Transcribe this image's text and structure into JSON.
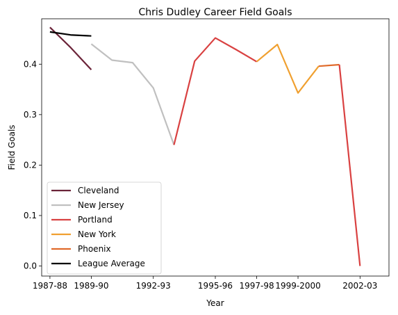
{
  "chart_data": {
    "type": "line",
    "title": "Chris Dudley Career Field Goals",
    "xlabel": "Year",
    "ylabel": "Field Goals",
    "x_ticks": [
      "1987-88",
      "1989-90",
      "1992-93",
      "1995-96",
      "1997-98",
      "1999-2000",
      "2002-03"
    ],
    "y_ticks": [
      "0.0",
      "0.1",
      "0.2",
      "0.3",
      "0.4"
    ],
    "xlim": [
      1986.6,
      2003.4
    ],
    "ylim": [
      -0.02,
      0.49
    ],
    "grid": false,
    "legend_position": "lower-left",
    "series": [
      {
        "name": "Cleveland",
        "color": "#6b2439",
        "x": [
          1987,
          1988,
          1989
        ],
        "y": [
          0.473,
          0.433,
          0.389
        ]
      },
      {
        "name": "New Jersey",
        "color": "#c0c0c0",
        "x": [
          1989,
          1990,
          1991,
          1992,
          1993
        ],
        "y": [
          0.44,
          0.408,
          0.403,
          0.353,
          0.24
        ]
      },
      {
        "name": "Portland",
        "color": "#d94141",
        "x": [
          1993,
          1994,
          1995,
          1996,
          1997
        ],
        "y": [
          0.24,
          0.406,
          0.452,
          0.429,
          0.405
        ]
      },
      {
        "name": "New York",
        "color": "#f0a030",
        "x": [
          1997,
          1998,
          1999,
          2000
        ],
        "y": [
          0.405,
          0.439,
          0.343,
          0.396
        ]
      },
      {
        "name": "Phoenix",
        "color": "#e06a2a",
        "x": [
          2000,
          2001
        ],
        "y": [
          0.396,
          0.399
        ]
      },
      {
        "name": "Portland",
        "color": "#d94141",
        "x": [
          2001,
          2002
        ],
        "y": [
          0.399,
          0.0
        ]
      },
      {
        "name": "League Average",
        "color": "#000000",
        "x": [
          1987,
          1988,
          1989
        ],
        "y": [
          0.464,
          0.458,
          0.456
        ]
      }
    ],
    "legend": [
      {
        "name": "Cleveland",
        "color": "#6b2439"
      },
      {
        "name": "New Jersey",
        "color": "#c0c0c0"
      },
      {
        "name": "Portland",
        "color": "#d94141"
      },
      {
        "name": "New York",
        "color": "#f0a030"
      },
      {
        "name": "Phoenix",
        "color": "#e06a2a"
      },
      {
        "name": "League Average",
        "color": "#000000"
      }
    ]
  }
}
